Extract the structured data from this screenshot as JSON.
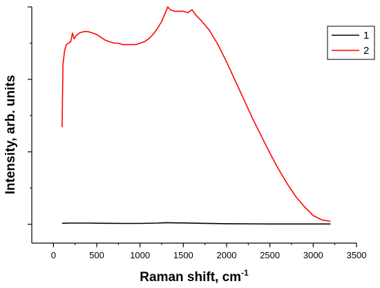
{
  "chart_data": {
    "type": "line",
    "title": "",
    "xlabel": "Raman shift, cm",
    "xlabel_superscript": "-1",
    "ylabel": "Intensity, arb. units",
    "xlim": [
      -250,
      3500
    ],
    "ylim": [
      -0.13,
      1.5
    ],
    "x_ticks": [
      0,
      500,
      1000,
      1500,
      2000,
      2500,
      3000,
      3500
    ],
    "x_tick_labels": [
      "0",
      "500",
      "1000",
      "1500",
      "2000",
      "2500",
      "3000",
      "3500"
    ],
    "y_major_ticks": [
      0,
      0.5,
      1.0,
      1.5
    ],
    "y_minor_ticks": [
      0.25,
      0.75,
      1.25
    ],
    "y_tick_labels_shown": false,
    "grid": false,
    "legend": {
      "position": "top-right",
      "entries": [
        {
          "label": "1",
          "color": "#000000"
        },
        {
          "label": "2",
          "color": "#ff0000"
        }
      ]
    },
    "series": [
      {
        "name": "1",
        "color": "#000000",
        "x": [
          100,
          200,
          400,
          600,
          800,
          1000,
          1200,
          1300,
          1350,
          1500,
          1700,
          2000,
          2500,
          3000,
          3200
        ],
        "y": [
          0.007,
          0.008,
          0.008,
          0.007,
          0.006,
          0.006,
          0.008,
          0.011,
          0.01,
          0.009,
          0.007,
          0.004,
          0.002,
          0.002,
          0.002
        ]
      },
      {
        "name": "2",
        "color": "#ff0000",
        "x": [
          100,
          110,
          130,
          150,
          200,
          220,
          240,
          260,
          300,
          350,
          400,
          450,
          500,
          550,
          600,
          650,
          700,
          750,
          800,
          850,
          900,
          950,
          1000,
          1050,
          1100,
          1150,
          1200,
          1250,
          1300,
          1320,
          1350,
          1400,
          1450,
          1500,
          1550,
          1600,
          1650,
          1700,
          1800,
          1900,
          2000,
          2100,
          2200,
          2300,
          2400,
          2500,
          2600,
          2700,
          2800,
          2900,
          3000,
          3100,
          3200
        ],
        "y": [
          0.67,
          1.1,
          1.2,
          1.24,
          1.26,
          1.32,
          1.28,
          1.3,
          1.32,
          1.33,
          1.33,
          1.32,
          1.31,
          1.29,
          1.27,
          1.26,
          1.25,
          1.25,
          1.24,
          1.24,
          1.24,
          1.24,
          1.25,
          1.26,
          1.28,
          1.31,
          1.35,
          1.4,
          1.47,
          1.5,
          1.48,
          1.47,
          1.47,
          1.47,
          1.46,
          1.48,
          1.44,
          1.41,
          1.34,
          1.24,
          1.12,
          0.99,
          0.86,
          0.73,
          0.61,
          0.49,
          0.38,
          0.28,
          0.19,
          0.12,
          0.06,
          0.03,
          0.02
        ]
      }
    ]
  }
}
